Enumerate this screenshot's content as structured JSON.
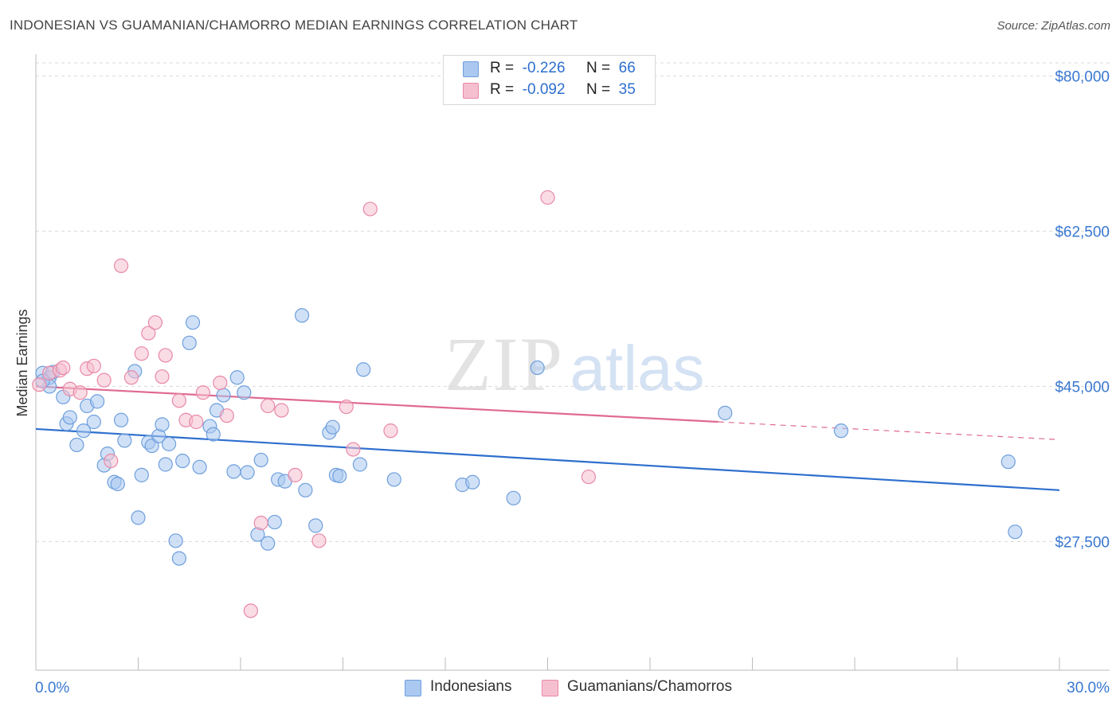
{
  "title": "INDONESIAN VS GUAMANIAN/CHAMORRO MEDIAN EARNINGS CORRELATION CHART",
  "source": "Source: ZipAtlas.com",
  "legend": {
    "rows": [
      {
        "r_label": "R =",
        "r_value": "-0.226",
        "n_label": "N =",
        "n_value": "66"
      },
      {
        "r_label": "R =",
        "r_value": "-0.092",
        "n_label": "N =",
        "n_value": "35"
      }
    ]
  },
  "colors": {
    "blue_fill": "#aac8f0",
    "blue_stroke": "#6f9fdc",
    "blue_line": "#2e6fce",
    "pink_fill": "#f6bfd0",
    "pink_stroke": "#e889a8",
    "pink_line": "#e06a91",
    "axis_label": "#3a78d0",
    "grid": "#d9d9d9"
  },
  "chart_data": {
    "type": "scatter",
    "ylabel": "Median Earnings",
    "xlim": [
      0,
      30
    ],
    "ylim": [
      13000,
      83000
    ],
    "x_tick_labels": [
      "0.0%",
      "30.0%"
    ],
    "y_ticks": [
      {
        "value": 80000,
        "label": "$80,000"
      },
      {
        "value": 62500,
        "label": "$62,500"
      },
      {
        "value": 45000,
        "label": "$45,000"
      },
      {
        "value": 27500,
        "label": "$27,500"
      }
    ],
    "grid": true,
    "series": [
      {
        "name": "Indonesians",
        "color": "blue",
        "trend": {
          "x0": 0,
          "y0": 40200,
          "x1": 30,
          "y1": 33300
        },
        "points": [
          [
            0.2,
            46500
          ],
          [
            0.4,
            46000
          ],
          [
            0.5,
            46600
          ],
          [
            0.4,
            45000
          ],
          [
            0.8,
            43800
          ],
          [
            0.9,
            40800
          ],
          [
            1.0,
            41500
          ],
          [
            1.2,
            38400
          ],
          [
            1.4,
            40000
          ],
          [
            1.5,
            42800
          ],
          [
            1.7,
            41000
          ],
          [
            1.8,
            43300
          ],
          [
            2.0,
            36100
          ],
          [
            2.1,
            37400
          ],
          [
            2.3,
            34200
          ],
          [
            2.4,
            34000
          ],
          [
            2.5,
            41200
          ],
          [
            2.6,
            38900
          ],
          [
            2.9,
            46700
          ],
          [
            3.0,
            30200
          ],
          [
            3.1,
            35000
          ],
          [
            3.3,
            38700
          ],
          [
            3.4,
            38300
          ],
          [
            3.6,
            39400
          ],
          [
            3.7,
            40700
          ],
          [
            3.8,
            36200
          ],
          [
            3.9,
            38500
          ],
          [
            4.1,
            27600
          ],
          [
            4.2,
            25600
          ],
          [
            4.3,
            36600
          ],
          [
            4.5,
            49900
          ],
          [
            4.6,
            52200
          ],
          [
            4.8,
            35900
          ],
          [
            5.1,
            40500
          ],
          [
            5.2,
            39600
          ],
          [
            5.3,
            42300
          ],
          [
            5.5,
            44000
          ],
          [
            5.8,
            35400
          ],
          [
            5.9,
            46000
          ],
          [
            6.1,
            44300
          ],
          [
            6.2,
            35300
          ],
          [
            6.5,
            28300
          ],
          [
            6.6,
            36700
          ],
          [
            6.8,
            27300
          ],
          [
            7.0,
            29700
          ],
          [
            7.1,
            34500
          ],
          [
            7.3,
            34300
          ],
          [
            7.8,
            53000
          ],
          [
            7.9,
            33300
          ],
          [
            8.2,
            29300
          ],
          [
            8.6,
            39800
          ],
          [
            8.7,
            40400
          ],
          [
            8.8,
            35000
          ],
          [
            8.9,
            34900
          ],
          [
            9.5,
            36200
          ],
          [
            9.6,
            46900
          ],
          [
            10.5,
            34500
          ],
          [
            12.5,
            33900
          ],
          [
            12.8,
            34200
          ],
          [
            14.0,
            32400
          ],
          [
            14.7,
            47100
          ],
          [
            20.2,
            42000
          ],
          [
            23.6,
            40000
          ],
          [
            28.5,
            36500
          ],
          [
            28.7,
            28600
          ],
          [
            0.2,
            45600
          ]
        ]
      },
      {
        "name": "Guamanians/Chamorros",
        "color": "pink",
        "trend": {
          "x0": 0,
          "y0": 45000,
          "x1": 20,
          "y1": 41000,
          "dash_x1": 30,
          "dash_y1": 39000
        },
        "points": [
          [
            0.1,
            45200
          ],
          [
            0.4,
            46500
          ],
          [
            0.7,
            46800
          ],
          [
            0.8,
            47100
          ],
          [
            1.0,
            44700
          ],
          [
            1.3,
            44300
          ],
          [
            1.5,
            47000
          ],
          [
            1.7,
            47300
          ],
          [
            2.0,
            45700
          ],
          [
            2.2,
            36600
          ],
          [
            2.5,
            58600
          ],
          [
            2.8,
            46000
          ],
          [
            3.1,
            48700
          ],
          [
            3.3,
            51000
          ],
          [
            3.5,
            52200
          ],
          [
            3.7,
            46100
          ],
          [
            3.8,
            48500
          ],
          [
            4.2,
            43400
          ],
          [
            4.4,
            41200
          ],
          [
            4.7,
            41000
          ],
          [
            4.9,
            44300
          ],
          [
            5.4,
            45400
          ],
          [
            5.6,
            41700
          ],
          [
            6.3,
            19700
          ],
          [
            6.6,
            29600
          ],
          [
            6.8,
            42800
          ],
          [
            7.2,
            42300
          ],
          [
            7.6,
            35000
          ],
          [
            8.3,
            27600
          ],
          [
            9.1,
            42700
          ],
          [
            9.3,
            37900
          ],
          [
            9.8,
            65000
          ],
          [
            10.4,
            40000
          ],
          [
            15.0,
            66300
          ],
          [
            16.2,
            34800
          ]
        ]
      }
    ]
  },
  "watermark": {
    "zip": "ZIP",
    "atlas": "atlas"
  },
  "bottom_legend": [
    {
      "label": "Indonesians"
    },
    {
      "label": "Guamanians/Chamorros"
    }
  ]
}
